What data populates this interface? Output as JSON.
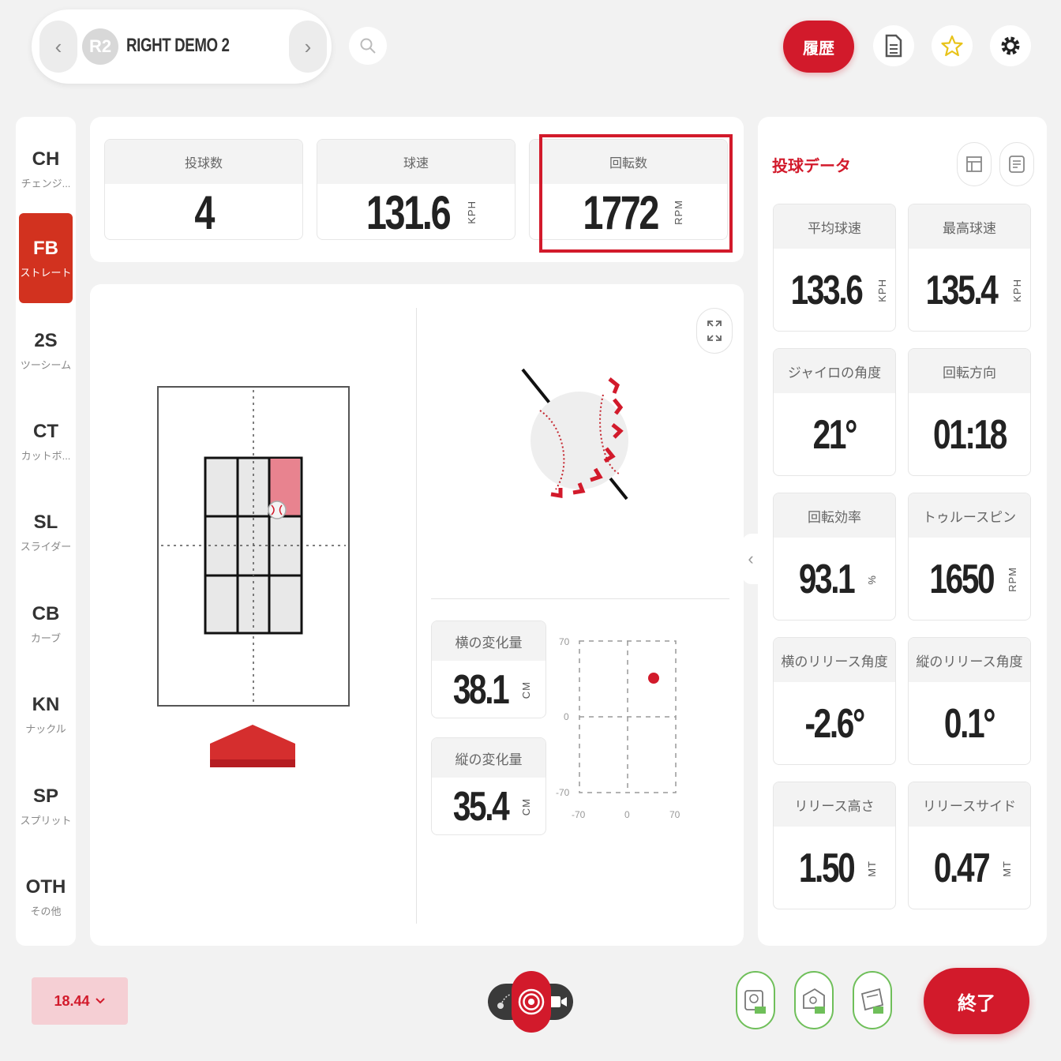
{
  "header": {
    "player_badge": "R2",
    "player_name": "RIGHT DEMO 2",
    "prev_glyph": "‹",
    "next_glyph": "›",
    "history_label": "履歴"
  },
  "sidebar": {
    "items": [
      {
        "code": "CH",
        "name": "チェンジ..."
      },
      {
        "code": "FB",
        "name": "ストレート",
        "active": true
      },
      {
        "code": "2S",
        "name": "ツーシーム"
      },
      {
        "code": "CT",
        "name": "カットボ..."
      },
      {
        "code": "SL",
        "name": "スライダー"
      },
      {
        "code": "CB",
        "name": "カーブ"
      },
      {
        "code": "KN",
        "name": "ナックル"
      },
      {
        "code": "SP",
        "name": "スプリット"
      },
      {
        "code": "OTH",
        "name": "その他"
      }
    ]
  },
  "stats": {
    "pitch_count": {
      "label": "投球数",
      "value": "4"
    },
    "velocity": {
      "label": "球速",
      "value": "131.6",
      "unit": "KPH"
    },
    "spin": {
      "label": "回転数",
      "value": "1772",
      "unit": "RPM"
    }
  },
  "movement": {
    "horizontal": {
      "label": "横の変化量",
      "value": "38.1",
      "unit": "CM"
    },
    "vertical": {
      "label": "縦の変化量",
      "value": "35.4",
      "unit": "CM"
    },
    "plot_ticks": {
      "y_top": "70",
      "y_mid": "0",
      "y_bottom": "-70",
      "x_left": "-70",
      "x_mid": "0",
      "x_right": "70"
    }
  },
  "right_panel": {
    "title": "投球データ",
    "metrics": [
      {
        "label": "平均球速",
        "value": "133.6",
        "unit": "KPH"
      },
      {
        "label": "最高球速",
        "value": "135.4",
        "unit": "KPH"
      },
      {
        "label": "ジャイロの角度",
        "value": "21°",
        "unit": ""
      },
      {
        "label": "回転方向",
        "value": "01:18",
        "unit": ""
      },
      {
        "label": "回転効率",
        "value": "93.1",
        "unit": "%"
      },
      {
        "label": "トゥルースピン",
        "value": "1650",
        "unit": "RPM"
      },
      {
        "label": "横のリリース角度",
        "value": "-2.6°",
        "unit": ""
      },
      {
        "label": "縦のリリース角度",
        "value": "0.1°",
        "unit": ""
      },
      {
        "label": "リリース高さ",
        "value": "1.50",
        "unit": "MT"
      },
      {
        "label": "リリースサイド",
        "value": "0.47",
        "unit": "MT"
      }
    ]
  },
  "footer": {
    "distance": "18.44",
    "finish_label": "終了"
  },
  "colors": {
    "accent": "#d21a2b",
    "active_pitch": "#d2321f",
    "camera_ok": "#6fbf5a"
  }
}
